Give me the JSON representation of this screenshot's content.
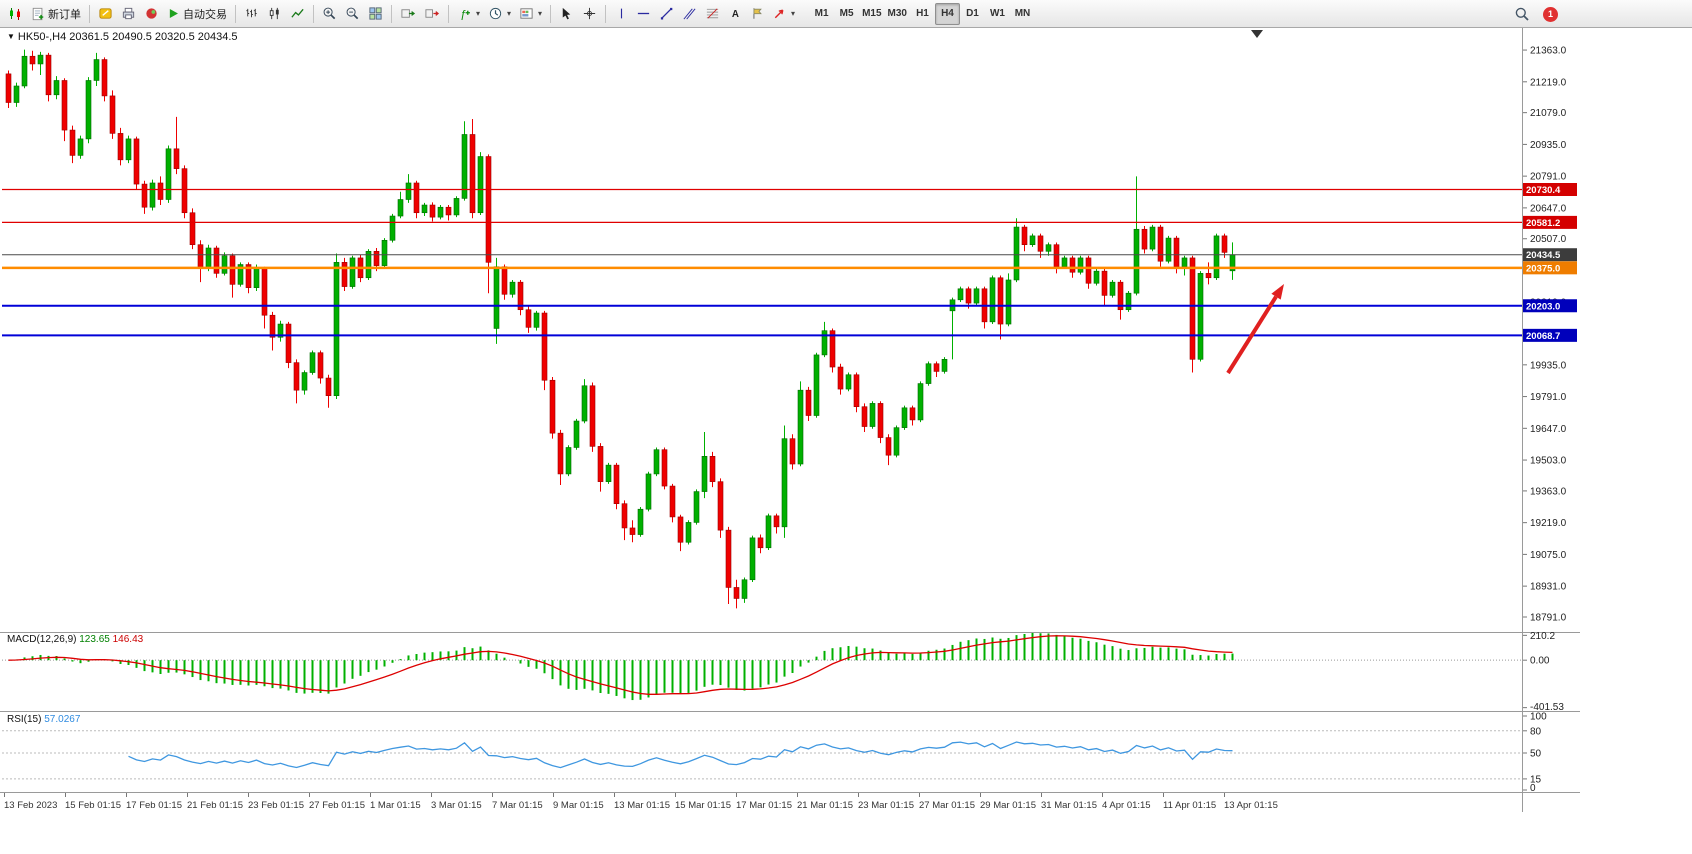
{
  "icons": {
    "title_marker": "▼",
    "dropdown_caret": "▾"
  },
  "toolbar": {
    "new_order_label": "新订单",
    "auto_trading_label": "自动交易",
    "timeframes": [
      "M1",
      "M5",
      "M15",
      "M30",
      "H1",
      "H4",
      "D1",
      "W1",
      "MN"
    ],
    "active_timeframe": "H4",
    "notification_count": "1"
  },
  "chart": {
    "title_symbol": "HK50-,H4",
    "title_ohlc": "20361.5 20490.5 20320.5 20434.5",
    "up_color": "#00b000",
    "down_color": "#ef0000",
    "price_axis_labels": [
      "21363.0",
      "21219.0",
      "21079.0",
      "20935.0",
      "20791.0",
      "20647.0",
      "20507.0",
      "20363.0",
      "20219.0",
      "20079.0",
      "19935.0",
      "19791.0",
      "19647.0",
      "19503.0",
      "19363.0",
      "19219.0",
      "19075.0",
      "18931.0",
      "18791.0"
    ],
    "time_axis_labels": [
      "13 Feb 2023",
      "15 Feb 01:15",
      "17 Feb 01:15",
      "21 Feb 01:15",
      "23 Feb 01:15",
      "27 Feb 01:15",
      "1 Mar 01:15",
      "3 Mar 01:15",
      "7 Mar 01:15",
      "9 Mar 01:15",
      "13 Mar 01:15",
      "15 Mar 01:15",
      "17 Mar 01:15",
      "21 Mar 01:15",
      "23 Mar 01:15",
      "27 Mar 01:15",
      "29 Mar 01:15",
      "31 Mar 01:15",
      "4 Apr 01:15",
      "11 Apr 01:15",
      "13 Apr 01:15"
    ],
    "price_tags": [
      {
        "label": "20730.4",
        "price": 20730.4,
        "bg": "#d40000",
        "line_color": "#e00000",
        "line_width": 1.2
      },
      {
        "label": "20581.2",
        "price": 20581.2,
        "bg": "#d40000",
        "line_color": "#e00000",
        "line_width": 1.2
      },
      {
        "label": "20434.5",
        "price": 20434.5,
        "bg": "#3c3c3c",
        "line_color": "#4a4a4a",
        "line_width": 1
      },
      {
        "label": "20375.0",
        "price": 20375.0,
        "bg": "#ef7d00",
        "line_color": "#ff8c00",
        "line_width": 2.5
      },
      {
        "label": "20203.0",
        "price": 20203.0,
        "bg": "#0000bb",
        "line_color": "#0000d8",
        "line_width": 2
      },
      {
        "label": "20068.7",
        "price": 20068.7,
        "bg": "#0000bb",
        "line_color": "#0000d8",
        "line_width": 2
      }
    ],
    "annotation_arrow": {
      "from": [
        1228,
        373
      ],
      "to": [
        1284,
        284
      ],
      "color": "#e02020"
    }
  },
  "macd": {
    "label": "MACD(12,26,9)",
    "value_main": "123.65",
    "value_signal": "146.43",
    "scale": [
      "210.2",
      "0.00",
      "-401.53"
    ],
    "histogram_color": "#00b000",
    "signal_color": "#dd0000",
    "params": {
      "fast": 12,
      "slow": 26,
      "signal": 9
    }
  },
  "rsi": {
    "label": "RSI(15)",
    "value": "57.0267",
    "period": 15,
    "levels": [
      80,
      50,
      15
    ],
    "scale": [
      "100",
      "80",
      "50",
      "15",
      "0"
    ],
    "line_color": "#3f97e0"
  },
  "chart_data": {
    "type": "candlestick",
    "symbol": "HK50-",
    "timeframe": "H4",
    "ylim": [
      18732,
      21454
    ],
    "candles": [
      [
        21255,
        21270,
        21100,
        21125
      ],
      [
        21125,
        21215,
        21105,
        21200
      ],
      [
        21200,
        21365,
        21190,
        21335
      ],
      [
        21335,
        21360,
        21270,
        21300
      ],
      [
        21300,
        21355,
        21250,
        21340
      ],
      [
        21340,
        21350,
        21130,
        21160
      ],
      [
        21160,
        21245,
        21140,
        21225
      ],
      [
        21225,
        21235,
        20950,
        21000
      ],
      [
        21000,
        21020,
        20850,
        20885
      ],
      [
        20885,
        20975,
        20870,
        20960
      ],
      [
        20960,
        21240,
        20940,
        21225
      ],
      [
        21225,
        21350,
        21200,
        21320
      ],
      [
        21320,
        21330,
        21130,
        21155
      ],
      [
        21155,
        21180,
        20960,
        20985
      ],
      [
        20985,
        21010,
        20840,
        20865
      ],
      [
        20865,
        20975,
        20850,
        20960
      ],
      [
        20960,
        20970,
        20730,
        20755
      ],
      [
        20755,
        20770,
        20620,
        20650
      ],
      [
        20650,
        20775,
        20635,
        20760
      ],
      [
        20760,
        20790,
        20660,
        20685
      ],
      [
        20685,
        20930,
        20670,
        20915
      ],
      [
        20915,
        21060,
        20800,
        20825
      ],
      [
        20825,
        20840,
        20600,
        20625
      ],
      [
        20625,
        20645,
        20460,
        20480
      ],
      [
        20480,
        20500,
        20310,
        20375
      ],
      [
        20375,
        20480,
        20360,
        20465
      ],
      [
        20465,
        20475,
        20330,
        20350
      ],
      [
        20350,
        20445,
        20340,
        20430
      ],
      [
        20430,
        20440,
        20240,
        20300
      ],
      [
        20300,
        20400,
        20290,
        20390
      ],
      [
        20390,
        20400,
        20260,
        20285
      ],
      [
        20285,
        20390,
        20270,
        20375
      ],
      [
        20375,
        20380,
        20100,
        20160
      ],
      [
        20160,
        20175,
        20000,
        20060
      ],
      [
        20060,
        20135,
        20040,
        20120
      ],
      [
        20120,
        20130,
        19920,
        19945
      ],
      [
        19945,
        19960,
        19760,
        19820
      ],
      [
        19820,
        19910,
        19800,
        19900
      ],
      [
        19900,
        20000,
        19890,
        19990
      ],
      [
        19990,
        20000,
        19850,
        19875
      ],
      [
        19875,
        19890,
        19740,
        19795
      ],
      [
        19795,
        20440,
        19780,
        20400
      ],
      [
        20400,
        20420,
        20270,
        20290
      ],
      [
        20290,
        20430,
        20280,
        20420
      ],
      [
        20420,
        20435,
        20310,
        20330
      ],
      [
        20330,
        20460,
        20320,
        20450
      ],
      [
        20450,
        20465,
        20360,
        20385
      ],
      [
        20385,
        20510,
        20375,
        20500
      ],
      [
        20500,
        20620,
        20490,
        20610
      ],
      [
        20610,
        20720,
        20600,
        20685
      ],
      [
        20685,
        20800,
        20670,
        20760
      ],
      [
        20760,
        20770,
        20600,
        20625
      ],
      [
        20625,
        20670,
        20610,
        20660
      ],
      [
        20660,
        20672,
        20585,
        20605
      ],
      [
        20605,
        20660,
        20595,
        20650
      ],
      [
        20650,
        20660,
        20590,
        20615
      ],
      [
        20615,
        20700,
        20605,
        20690
      ],
      [
        20690,
        21040,
        20680,
        20980
      ],
      [
        20980,
        21050,
        20600,
        20625
      ],
      [
        20625,
        20900,
        20615,
        20880
      ],
      [
        20880,
        20890,
        20260,
        20400
      ],
      [
        20100,
        20420,
        20030,
        20380
      ],
      [
        20380,
        20390,
        20230,
        20255
      ],
      [
        20255,
        20320,
        20240,
        20310
      ],
      [
        20310,
        20320,
        20160,
        20185
      ],
      [
        20185,
        20200,
        20080,
        20105
      ],
      [
        20105,
        20180,
        20090,
        20170
      ],
      [
        20170,
        20180,
        19820,
        19865
      ],
      [
        19865,
        19880,
        19600,
        19625
      ],
      [
        19625,
        19640,
        19390,
        19440
      ],
      [
        19440,
        19570,
        19430,
        19560
      ],
      [
        19560,
        19690,
        19550,
        19680
      ],
      [
        19680,
        19870,
        19670,
        19840
      ],
      [
        19840,
        19855,
        19540,
        19565
      ],
      [
        19565,
        19580,
        19360,
        19405
      ],
      [
        19405,
        19490,
        19395,
        19480
      ],
      [
        19480,
        19490,
        19280,
        19305
      ],
      [
        19305,
        19320,
        19140,
        19195
      ],
      [
        19195,
        19230,
        19130,
        19165
      ],
      [
        19165,
        19290,
        19155,
        19280
      ],
      [
        19280,
        19450,
        19270,
        19440
      ],
      [
        19440,
        19560,
        19430,
        19550
      ],
      [
        19550,
        19560,
        19370,
        19385
      ],
      [
        19385,
        19395,
        19220,
        19245
      ],
      [
        19245,
        19255,
        19090,
        19130
      ],
      [
        19130,
        19230,
        19120,
        19220
      ],
      [
        19220,
        19370,
        19210,
        19360
      ],
      [
        19360,
        19630,
        19330,
        19520
      ],
      [
        19520,
        19540,
        19380,
        19405
      ],
      [
        19405,
        19420,
        19150,
        19185
      ],
      [
        19185,
        19200,
        18850,
        18925
      ],
      [
        18925,
        18960,
        18830,
        18875
      ],
      [
        18875,
        18970,
        18855,
        18960
      ],
      [
        18960,
        19160,
        18950,
        19150
      ],
      [
        19150,
        19165,
        19080,
        19105
      ],
      [
        19105,
        19260,
        19095,
        19250
      ],
      [
        19250,
        19260,
        19170,
        19200
      ],
      [
        19200,
        19660,
        19150,
        19600
      ],
      [
        19600,
        19620,
        19460,
        19485
      ],
      [
        19485,
        19860,
        19475,
        19820
      ],
      [
        19820,
        19835,
        19680,
        19705
      ],
      [
        19705,
        19990,
        19695,
        19980
      ],
      [
        19980,
        20130,
        19970,
        20090
      ],
      [
        20090,
        20100,
        19900,
        19925
      ],
      [
        19925,
        19940,
        19800,
        19825
      ],
      [
        19825,
        19900,
        19815,
        19890
      ],
      [
        19890,
        19900,
        19720,
        19745
      ],
      [
        19745,
        19760,
        19630,
        19655
      ],
      [
        19655,
        19770,
        19645,
        19760
      ],
      [
        19760,
        19770,
        19580,
        19605
      ],
      [
        19605,
        19620,
        19480,
        19525
      ],
      [
        19525,
        19660,
        19515,
        19650
      ],
      [
        19650,
        19750,
        19640,
        19740
      ],
      [
        19740,
        19750,
        19660,
        19685
      ],
      [
        19685,
        19860,
        19675,
        19850
      ],
      [
        19850,
        19950,
        19840,
        19940
      ],
      [
        19940,
        19950,
        19880,
        19905
      ],
      [
        19905,
        19970,
        19895,
        19960
      ],
      [
        20180,
        20240,
        19960,
        20230
      ],
      [
        20230,
        20290,
        20220,
        20280
      ],
      [
        20280,
        20290,
        20190,
        20215
      ],
      [
        20215,
        20290,
        20205,
        20280
      ],
      [
        20280,
        20290,
        20100,
        20130
      ],
      [
        20130,
        20340,
        20120,
        20330
      ],
      [
        20330,
        20340,
        20050,
        20120
      ],
      [
        20120,
        20350,
        20110,
        20320
      ],
      [
        20320,
        20600,
        20310,
        20560
      ],
      [
        20560,
        20570,
        20450,
        20480
      ],
      [
        20480,
        20530,
        20470,
        20520
      ],
      [
        20520,
        20530,
        20420,
        20450
      ],
      [
        20450,
        20490,
        20430,
        20480
      ],
      [
        20480,
        20490,
        20350,
        20380
      ],
      [
        20380,
        20430,
        20370,
        20420
      ],
      [
        20420,
        20430,
        20330,
        20355
      ],
      [
        20355,
        20430,
        20345,
        20420
      ],
      [
        20420,
        20430,
        20280,
        20305
      ],
      [
        20305,
        20370,
        20295,
        20360
      ],
      [
        20360,
        20370,
        20200,
        20250
      ],
      [
        20250,
        20320,
        20240,
        20310
      ],
      [
        20310,
        20320,
        20140,
        20185
      ],
      [
        20185,
        20270,
        20175,
        20260
      ],
      [
        20260,
        20790,
        20250,
        20550
      ],
      [
        20550,
        20565,
        20440,
        20460
      ],
      [
        20460,
        20570,
        20450,
        20560
      ],
      [
        20560,
        20570,
        20380,
        20405
      ],
      [
        20405,
        20520,
        20395,
        20510
      ],
      [
        20510,
        20520,
        20350,
        20380
      ],
      [
        20380,
        20430,
        20340,
        20420
      ],
      [
        20420,
        20430,
        19900,
        19960
      ],
      [
        19960,
        20360,
        19950,
        20350
      ],
      [
        20350,
        20400,
        20300,
        20330
      ],
      [
        20330,
        20530,
        20320,
        20520
      ],
      [
        20520,
        20530,
        20420,
        20445
      ],
      [
        20361.5,
        20490.5,
        20320.5,
        20434.5
      ]
    ]
  }
}
